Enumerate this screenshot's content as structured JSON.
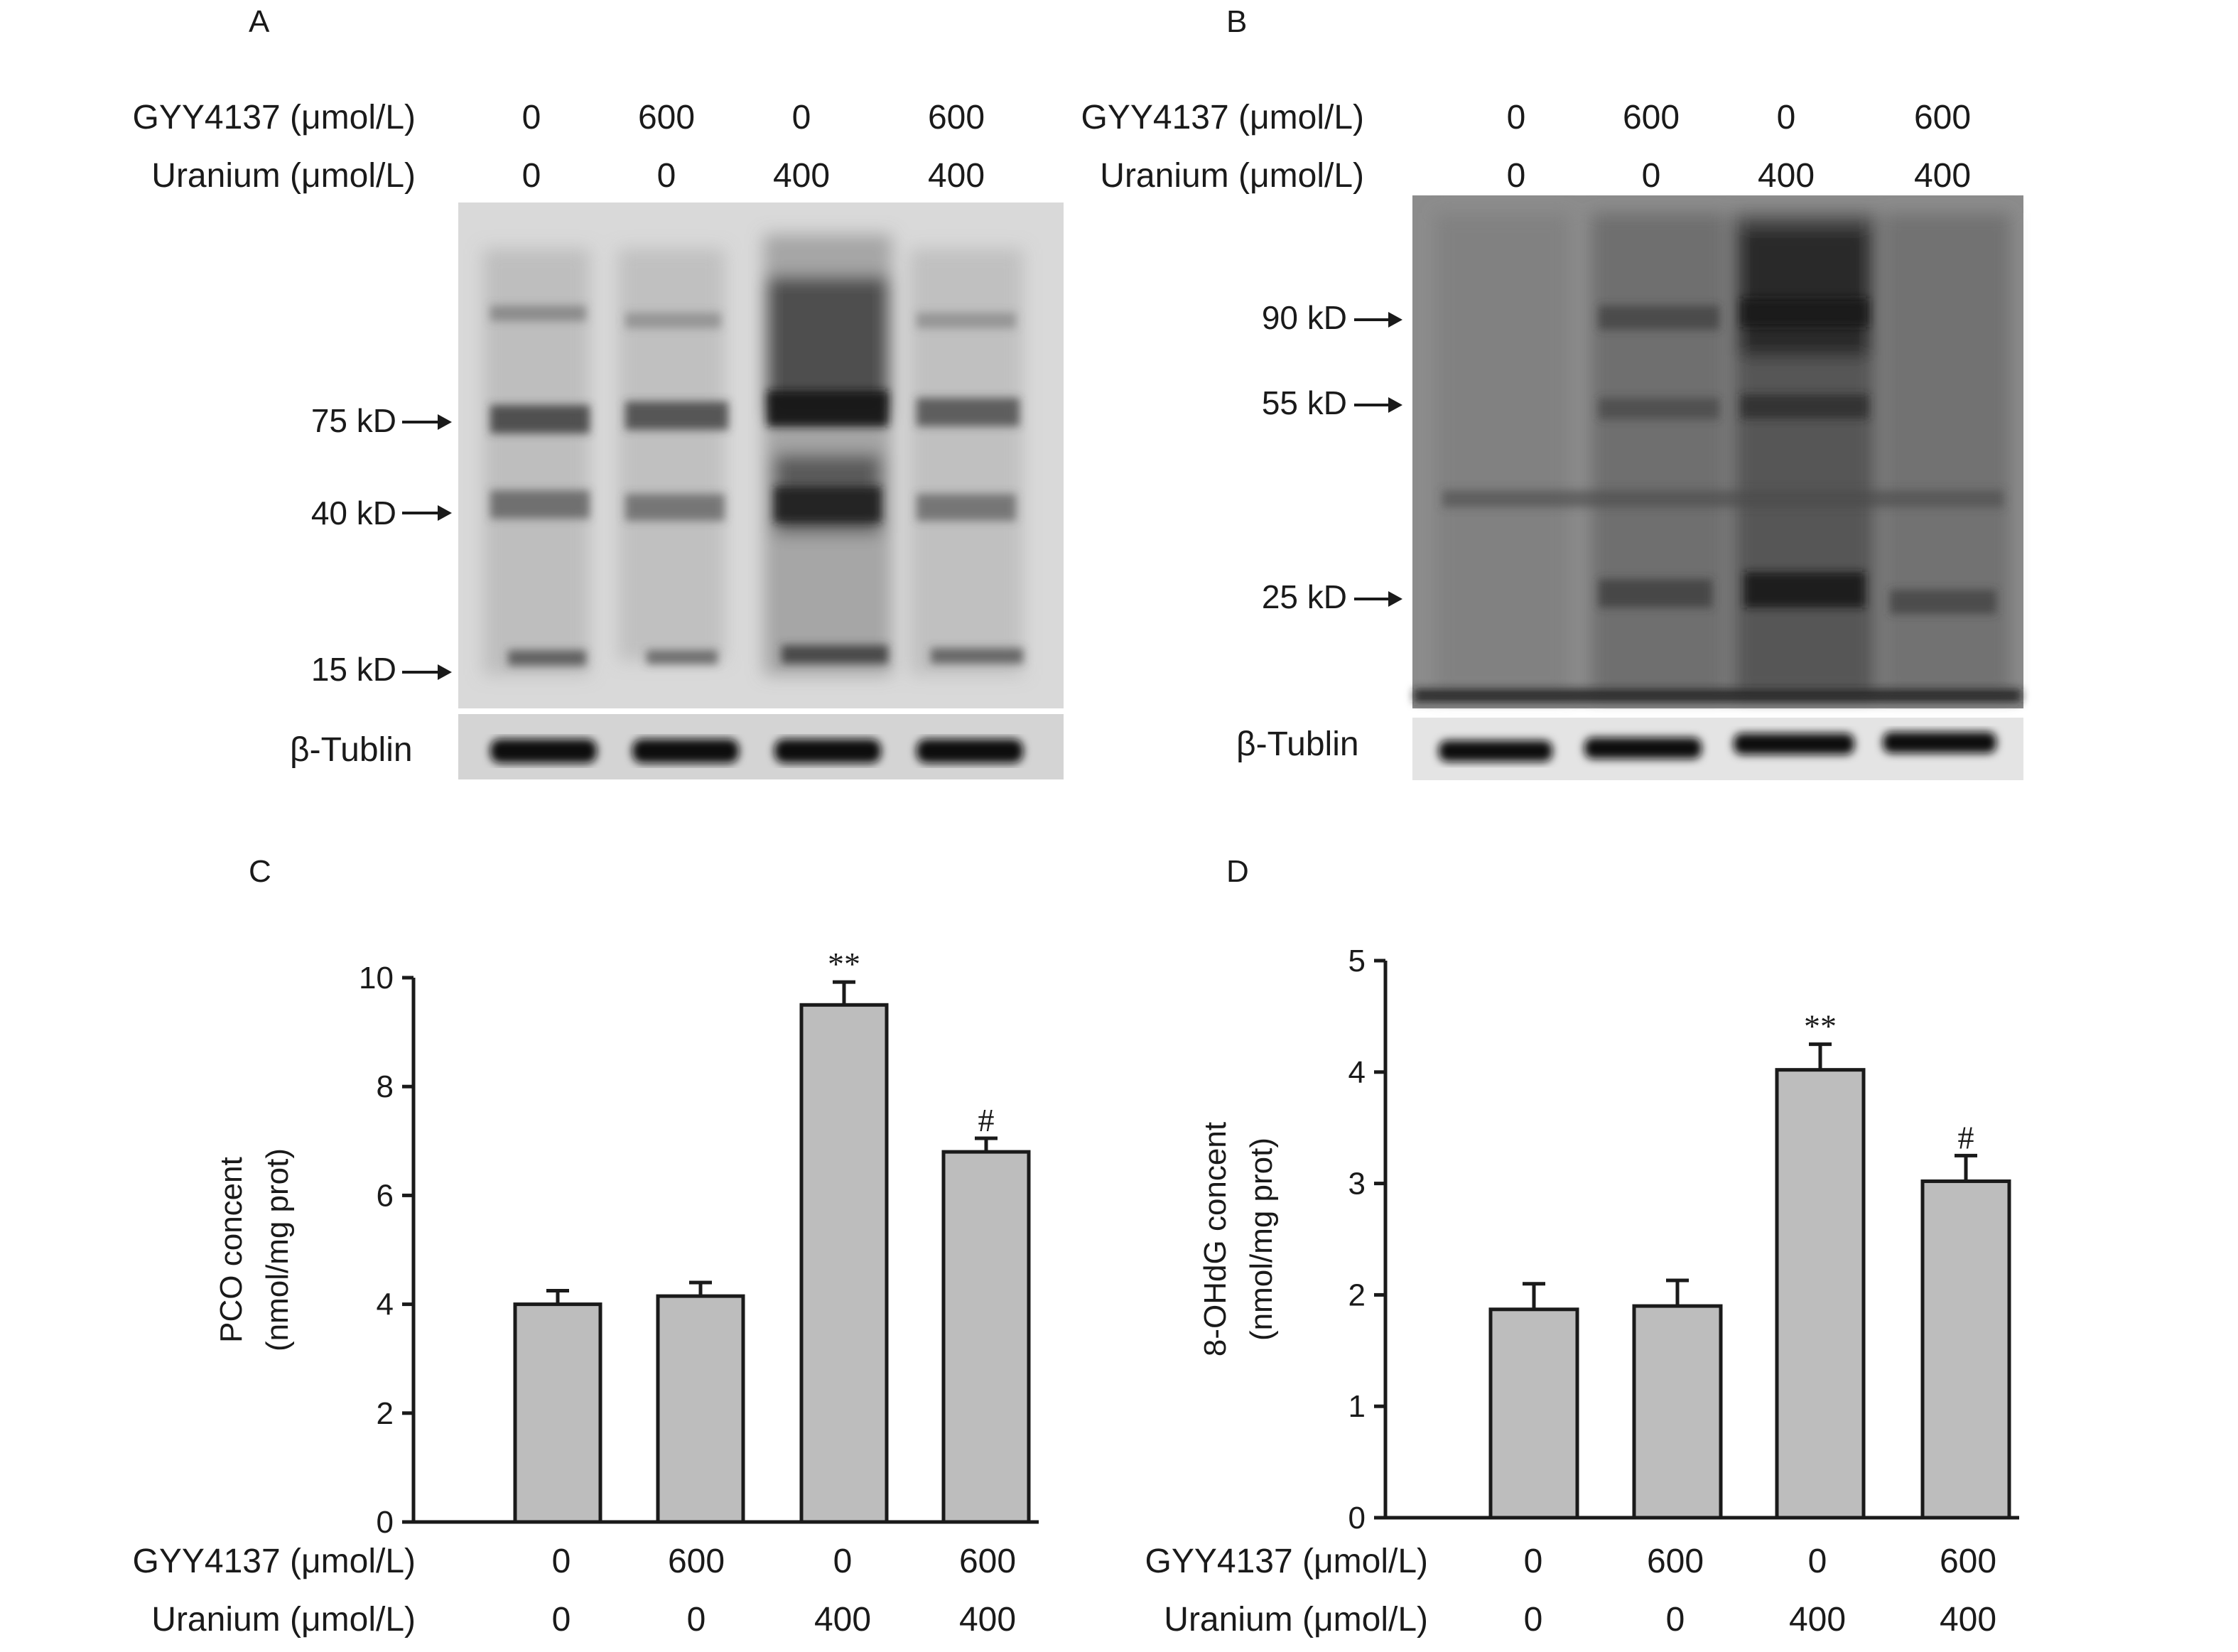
{
  "panels": {
    "A": {
      "letter": "A",
      "gyy_label": "GYY4137 (μmol/L)",
      "uranium_label": "Uranium (μmol/L)",
      "gyy_values": [
        "0",
        "600",
        "0",
        "600"
      ],
      "uranium_values": [
        "0",
        "0",
        "400",
        "400"
      ],
      "markers": [
        "75 kD",
        "40 kD",
        "15 kD"
      ],
      "loading_label": "β-Tublin"
    },
    "B": {
      "letter": "B",
      "gyy_label": "GYY4137 (μmol/L)",
      "uranium_label": "Uranium (μmol/L)",
      "gyy_values": [
        "0",
        "600",
        "0",
        "600"
      ],
      "uranium_values": [
        "0",
        "0",
        "400",
        "400"
      ],
      "markers": [
        "90 kD",
        "55 kD",
        "25 kD"
      ],
      "loading_label": "β-Tublin"
    },
    "C": {
      "letter": "C",
      "gyy_label": "GYY4137 (μmol/L)",
      "uranium_label": "Uranium (μmol/L)",
      "gyy_values": [
        "0",
        "600",
        "0",
        "600"
      ],
      "uranium_values": [
        "0",
        "0",
        "400",
        "400"
      ]
    },
    "D": {
      "letter": "D",
      "gyy_label": "GYY4137 (μmol/L)",
      "uranium_label": "Uranium (μmol/L)",
      "gyy_values": [
        "0",
        "600",
        "0",
        "600"
      ],
      "uranium_values": [
        "0",
        "0",
        "400",
        "400"
      ]
    }
  },
  "chart_data": [
    {
      "type": "bar",
      "panel": "C",
      "ylabel_line1": "PCO concent",
      "ylabel_line2": "(nmol/mg prot)",
      "ylim": [
        0,
        10
      ],
      "yticks": [
        0,
        2,
        4,
        6,
        8,
        10
      ],
      "categories": [
        "GYY 0 / U 0",
        "GYY 600 / U 0",
        "GYY 0 / U 400",
        "GYY 600 / U 400"
      ],
      "values": [
        4.0,
        4.15,
        9.5,
        6.8
      ],
      "errors": [
        0.25,
        0.25,
        0.42,
        0.25
      ],
      "significance": [
        "",
        "",
        "**",
        "#"
      ],
      "bar_color": "#bdbdbd"
    },
    {
      "type": "bar",
      "panel": "D",
      "ylabel_line1": "8-OHdG concent",
      "ylabel_line2": "(nmol/mg prot)",
      "ylim": [
        0,
        5
      ],
      "yticks": [
        0,
        1,
        2,
        3,
        4,
        5
      ],
      "categories": [
        "GYY 0 / U 0",
        "GYY 600 / U 0",
        "GYY 0 / U 400",
        "GYY 600 / U 400"
      ],
      "values": [
        1.87,
        1.9,
        4.02,
        3.02
      ],
      "errors": [
        0.23,
        0.23,
        0.23,
        0.23
      ],
      "significance": [
        "",
        "",
        "**",
        "#"
      ],
      "bar_color": "#bdbdbd"
    }
  ]
}
